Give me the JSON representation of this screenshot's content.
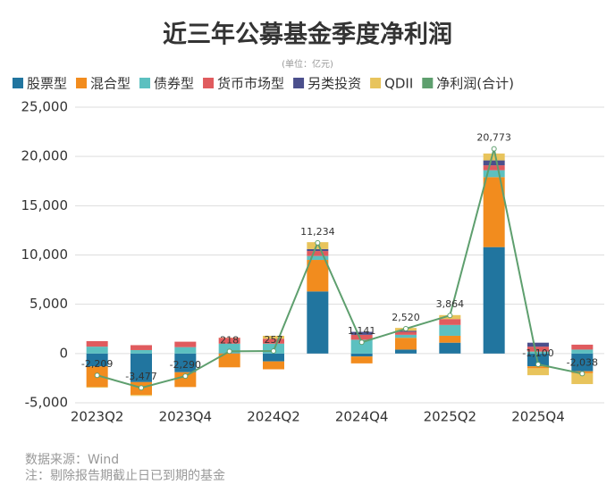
{
  "chart_data": {
    "type": "bar",
    "title": "近三年公募基金季度净利润",
    "subtitle": "(单位：亿元)",
    "categories": [
      "2023Q2",
      null,
      "2023Q4",
      null,
      "2024Q2",
      null,
      "2024Q4",
      null,
      "2025Q2",
      null,
      "2025Q4",
      null
    ],
    "series": [
      {
        "name": "股票型",
        "color": "#21759f",
        "values": [
          -1300,
          -2900,
          -1900,
          50,
          -800,
          6300,
          -300,
          400,
          1100,
          10800,
          -1300,
          -1800
        ]
      },
      {
        "name": "混合型",
        "color": "#f28c1e",
        "values": [
          -2100,
          -1300,
          -1500,
          -1400,
          -800,
          3200,
          -700,
          1200,
          700,
          7100,
          -200,
          -200
        ]
      },
      {
        "name": "债券型",
        "color": "#5cc0c0",
        "values": [
          700,
          350,
          650,
          950,
          1000,
          400,
          1400,
          300,
          1100,
          700,
          200,
          400
        ]
      },
      {
        "name": "货币市场型",
        "color": "#e05b5e",
        "values": [
          560,
          500,
          550,
          600,
          500,
          500,
          500,
          300,
          600,
          500,
          500,
          500
        ]
      },
      {
        "name": "另类投资",
        "color": "#4b4f8c",
        "values": [
          0,
          0,
          0,
          0,
          0,
          200,
          300,
          100,
          0,
          500,
          400,
          0
        ]
      },
      {
        "name": "QDII",
        "color": "#e8c45c",
        "values": [
          -70,
          -100,
          0,
          20,
          300,
          700,
          0,
          300,
          400,
          700,
          -700,
          -1100
        ]
      },
      {
        "name": "净利润(合计)",
        "color": "#5e9f6e",
        "style": "line",
        "values": [
          -2209,
          -3477,
          -2290,
          218,
          257,
          11234,
          1141,
          2520,
          3864,
          20773,
          -1100,
          -2038
        ],
        "value_labels": [
          "-2,209",
          "-3,477",
          "-2,290",
          "218",
          "257",
          "11,234",
          "1,141",
          "2,520",
          "3,864",
          "20,773",
          "-1,100",
          "-2,038"
        ]
      }
    ],
    "ylim": [
      -5000,
      25000
    ],
    "yticks": [
      {
        "value": -5000,
        "label": "-5,000"
      },
      0,
      {
        "value": 5000,
        "label": "5,000"
      },
      {
        "value": 10000,
        "label": "10,000"
      },
      {
        "value": 15000,
        "label": "15,000"
      },
      {
        "value": 20000,
        "label": "20,000"
      },
      {
        "value": 25000,
        "label": "25,000"
      }
    ],
    "grid": true,
    "notes": [
      "数据来源：Wind",
      "注：剔除报告期截止日已到期的基金"
    ]
  }
}
